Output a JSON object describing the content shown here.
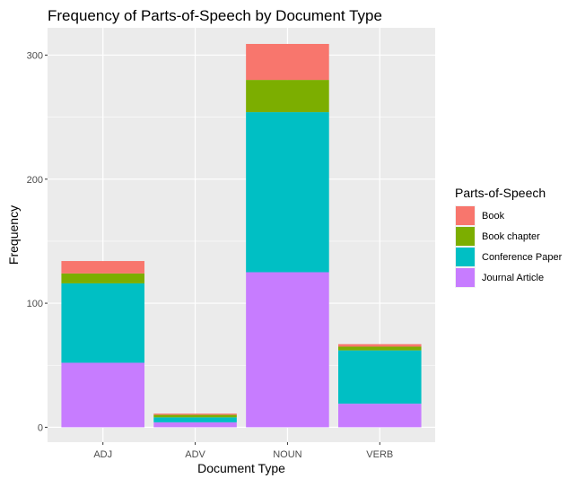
{
  "chart_data": {
    "type": "bar",
    "stacked": true,
    "title": "Frequency of Parts-of-Speech by Document Type",
    "xlabel": "Document Type",
    "ylabel": "Frequency",
    "categories": [
      "ADJ",
      "ADV",
      "NOUN",
      "VERB"
    ],
    "ylim": [
      -12,
      322
    ],
    "yticks": [
      0,
      100,
      200,
      300
    ],
    "grid": true,
    "legend": {
      "title": "Parts-of-Speech",
      "position": "right"
    },
    "series": [
      {
        "name": "Journal Article",
        "color": "#C77CFF",
        "values": [
          52,
          4,
          125,
          19
        ]
      },
      {
        "name": "Conference Paper",
        "color": "#00BFC4",
        "values": [
          64,
          4,
          129,
          43
        ]
      },
      {
        "name": "Book chapter",
        "color": "#7CAE00",
        "values": [
          8,
          2,
          26,
          3
        ]
      },
      {
        "name": "Book",
        "color": "#F8766D",
        "values": [
          10,
          1,
          29,
          2
        ]
      }
    ],
    "legend_order": [
      "Book",
      "Book chapter",
      "Conference Paper",
      "Journal Article"
    ]
  }
}
